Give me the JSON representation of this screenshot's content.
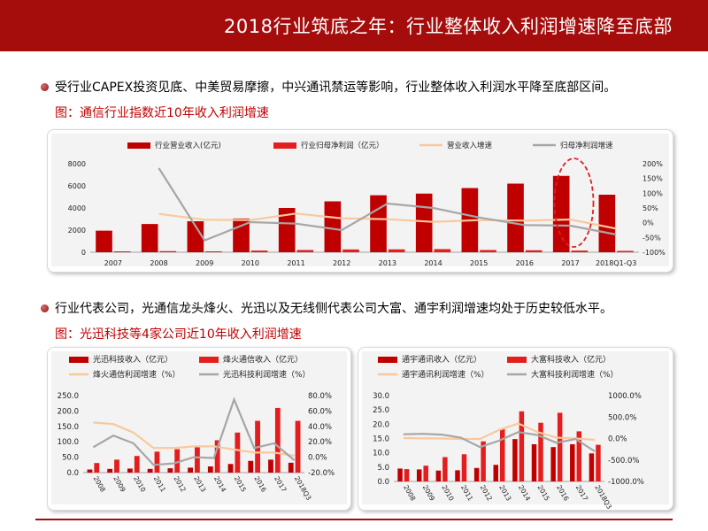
{
  "header": {
    "title": "2018行业筑底之年：行业整体收入利润增速降至底部"
  },
  "bullets": [
    {
      "text": "受行业CAPEX投资见底、中美贸易摩擦，中兴通讯禁运等影响，行业整体收入利润水平降至底部区间。"
    },
    {
      "text": "行业代表公司，光通信龙头烽火、光迅以及无线侧代表公司大富、通宇利润增速均处于历史较低水平。"
    }
  ],
  "chart_titles": [
    "图：通信行业指数近10年收入利润增速",
    "图：光迅科技等4家公司近10年收入利润增速"
  ],
  "colors": {
    "bar1": "#c00000",
    "bar2": "#e41e1e",
    "line1": "#f9c89b",
    "line2": "#a6a6a6",
    "highlight": "#e02020"
  },
  "chart_data": [
    {
      "type": "bar",
      "categories": [
        "2007",
        "2008",
        "2009",
        "2010",
        "2011",
        "2012",
        "2013",
        "2014",
        "2015",
        "2016",
        "2017",
        "2018Q1-Q3"
      ],
      "series": [
        {
          "name": "行业营业收入(亿元)",
          "type": "bar",
          "axis": "left",
          "values": [
            1950,
            2550,
            2800,
            3050,
            4000,
            4600,
            5150,
            5300,
            5800,
            6200,
            6900,
            5200
          ]
        },
        {
          "name": "行业归母净利润（亿元）",
          "type": "bar",
          "axis": "left",
          "values": [
            80,
            100,
            80,
            150,
            200,
            250,
            260,
            280,
            200,
            180,
            150,
            120
          ]
        },
        {
          "name": "营业收入增速",
          "type": "line",
          "axis": "right",
          "values": [
            null,
            0.3,
            0.1,
            0.09,
            0.31,
            0.15,
            0.12,
            0.03,
            0.09,
            0.07,
            0.11,
            -0.2
          ]
        },
        {
          "name": "归母净利润增速",
          "type": "line",
          "axis": "right",
          "values": [
            null,
            1.85,
            -0.6,
            0.02,
            -0.03,
            -0.25,
            0.65,
            0.5,
            0.18,
            -0.08,
            -0.1,
            -0.4
          ]
        }
      ],
      "ylim": [
        0,
        8000
      ],
      "yticks": [
        0,
        2000,
        4000,
        6000,
        8000
      ],
      "y2lim": [
        -1.0,
        2.0
      ],
      "y2ticks": [
        "-100%",
        "-50%",
        "0%",
        "50%",
        "100%",
        "150%",
        "200%"
      ],
      "y2tickvals": [
        -1.0,
        -0.5,
        0,
        0.5,
        1.0,
        1.5,
        2.0
      ]
    },
    {
      "type": "bar",
      "categories": [
        "2008",
        "2009",
        "2010",
        "2011",
        "2012",
        "2013",
        "2014",
        "2015",
        "2016",
        "2017",
        "2018Q3"
      ],
      "series": [
        {
          "name": "光迅科技收入（亿元）",
          "type": "bar",
          "axis": "left",
          "values": [
            10,
            12,
            13,
            12,
            14,
            16,
            20,
            28,
            38,
            42,
            32
          ]
        },
        {
          "name": "烽火通信收入（亿元）",
          "type": "bar",
          "axis": "left",
          "values": [
            31,
            42,
            54,
            68,
            76,
            86,
            105,
            130,
            168,
            210,
            168
          ]
        },
        {
          "name": "烽火通信利润增速（%）",
          "type": "line",
          "axis": "right",
          "values": [
            0.45,
            0.43,
            0.32,
            0.12,
            0.12,
            0.14,
            0.14,
            0.1,
            0.06,
            0.06,
            0.02
          ]
        },
        {
          "name": "光迅科技利润增速（%）",
          "type": "line",
          "axis": "right",
          "values": [
            0.13,
            0.28,
            0.18,
            -0.1,
            -0.08,
            0.0,
            -0.01,
            0.75,
            0.12,
            0.18,
            -0.04
          ]
        }
      ],
      "ylim": [
        0,
        250
      ],
      "yticks": [
        "0.0",
        "50.0",
        "100.0",
        "150.0",
        "200.0",
        "250.0"
      ],
      "ytickvals": [
        0,
        50,
        100,
        150,
        200,
        250
      ],
      "y2lim": [
        -0.2,
        0.8
      ],
      "y2ticks": [
        "-20.0%",
        "0.0%",
        "20.0%",
        "40.0%",
        "60.0%",
        "80.0%"
      ],
      "y2tickvals": [
        -0.2,
        0,
        0.2,
        0.4,
        0.6,
        0.8
      ]
    },
    {
      "type": "bar",
      "categories": [
        "2008",
        "2009",
        "2010",
        "2011",
        "2012",
        "2013",
        "2014",
        "2015",
        "2016",
        "2017",
        "2018Q3"
      ],
      "series": [
        {
          "name": "通宇通讯收入（亿元）",
          "type": "bar",
          "axis": "left",
          "values": [
            4.5,
            4.2,
            3.8,
            3.9,
            4.7,
            5.8,
            14.8,
            13.0,
            12.0,
            13.0,
            9.8
          ]
        },
        {
          "name": "大富科技收入（亿元）",
          "type": "bar",
          "axis": "left",
          "values": [
            4.3,
            5.5,
            8.5,
            9.5,
            14.0,
            18.5,
            24.5,
            20.5,
            24.0,
            17.5,
            12.8
          ]
        },
        {
          "name": "通宇通讯利润增速（%）",
          "type": "line",
          "axis": "right",
          "values": [
            0.1,
            0.05,
            0.0,
            -0.1,
            -0.1,
            2.0,
            3.5,
            1.5,
            0.2,
            0.0,
            -0.3
          ]
        },
        {
          "name": "大富科技利润增速（%）",
          "type": "line",
          "axis": "right",
          "values": [
            1.0,
            1.1,
            0.9,
            0.2,
            -2.0,
            -0.5,
            1.5,
            0.8,
            -1.0,
            -0.1,
            -3.0
          ]
        }
      ],
      "ylim": [
        0,
        30
      ],
      "yticks": [
        "0.0",
        "5.0",
        "10.0",
        "15.0",
        "20.0",
        "25.0",
        "30.0"
      ],
      "ytickvals": [
        0,
        5,
        10,
        15,
        20,
        25,
        30
      ],
      "y2lim": [
        -10.0,
        10.0
      ],
      "y2ticks": [
        "-1000.0%",
        "-500.0%",
        "0.0%",
        "500.0%",
        "1000.0%"
      ],
      "y2tickvals": [
        -10,
        -5,
        0,
        5,
        10
      ]
    }
  ]
}
